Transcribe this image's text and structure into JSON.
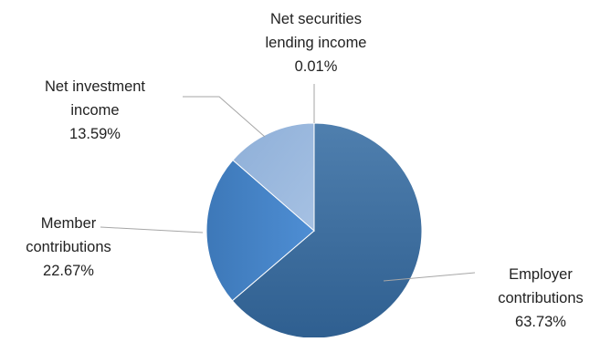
{
  "chart_data": {
    "type": "pie",
    "title": "",
    "slices": [
      {
        "label_lines": [
          "Employer",
          "contributions",
          "63.73%"
        ],
        "value": 63.73,
        "color": "#34679a"
      },
      {
        "label_lines": [
          "Member",
          "contributions",
          "22.67%"
        ],
        "value": 22.67,
        "color": "#4a86c8"
      },
      {
        "label_lines": [
          "Net investment",
          "income",
          "13.59%"
        ],
        "value": 13.59,
        "color": "#9cb9dd"
      },
      {
        "label_lines": [
          "Net securities",
          "lending income",
          "0.01%"
        ],
        "value": 0.01,
        "color": "#c5d6ec"
      }
    ],
    "legend": "none",
    "label_style": "leader-lines"
  }
}
